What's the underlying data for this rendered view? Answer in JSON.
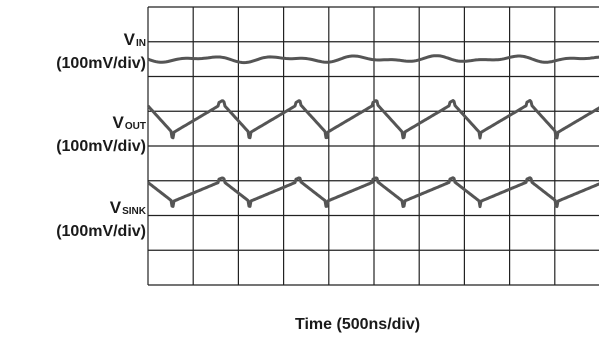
{
  "chart_data": {
    "type": "line",
    "title": "",
    "xlabel": "Time (500ns/div)",
    "grid": true,
    "horizontal_divisions": 10,
    "vertical_divisions": 8,
    "period_divisions": 1.7,
    "series": [
      {
        "name": "V",
        "subscript": "IN",
        "scale": "(100mV/div)",
        "shape": "flat with small ripple",
        "amplitude_div": 0.1,
        "color": "#555555"
      },
      {
        "name": "V",
        "subscript": "OUT",
        "scale": "(100mV/div)",
        "shape": "sawtooth",
        "amplitude_div": 0.85,
        "color": "#555555"
      },
      {
        "name": "V",
        "subscript": "SINK",
        "scale": "(100mV/div)",
        "shape": "sawtooth",
        "amplitude_div": 0.6,
        "color": "#555555"
      }
    ]
  }
}
